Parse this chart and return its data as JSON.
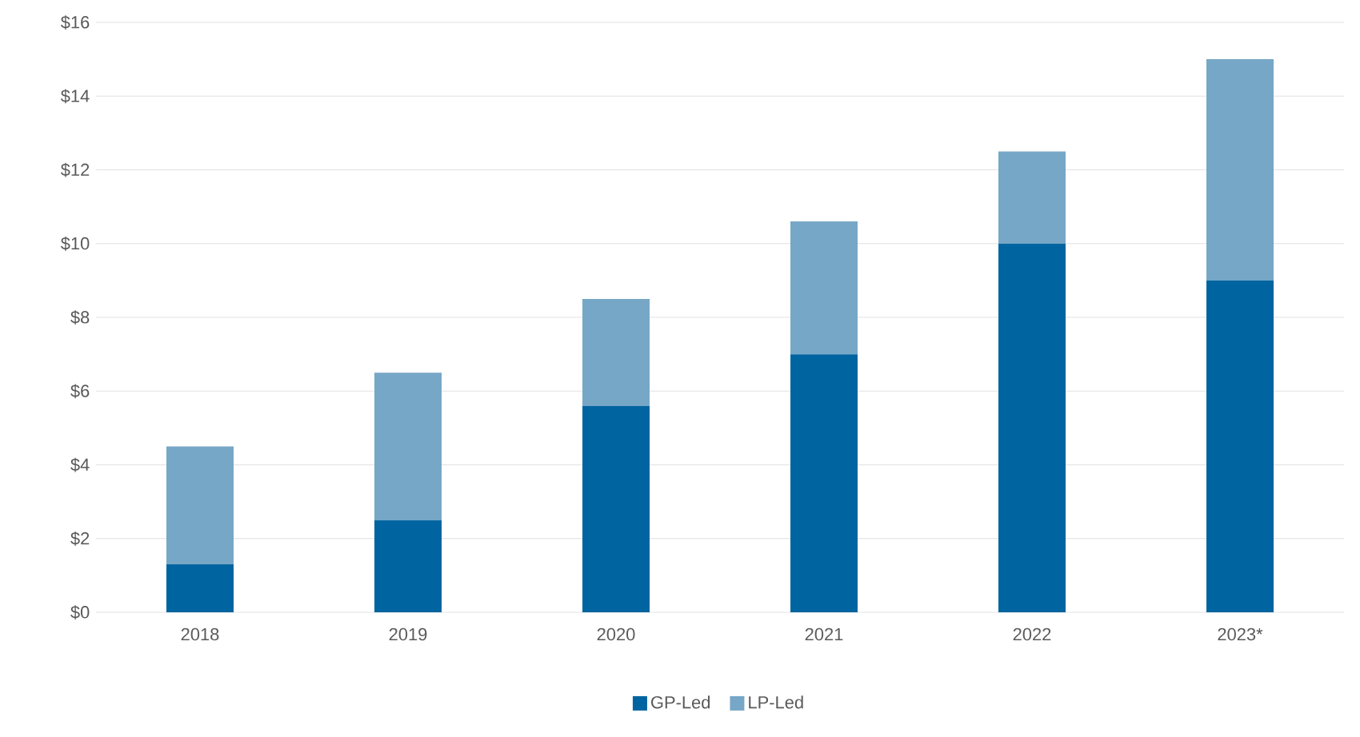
{
  "chart_data": {
    "type": "bar",
    "stacked": true,
    "categories": [
      "2018",
      "2019",
      "2020",
      "2021",
      "2022",
      "2023*"
    ],
    "series": [
      {
        "name": "GP-Led",
        "color": "#0064a0",
        "values": [
          1.3,
          2.5,
          5.6,
          7.0,
          10.0,
          9.0
        ]
      },
      {
        "name": "LP-Led",
        "color": "#76a7c6",
        "values": [
          3.2,
          4.0,
          2.9,
          3.6,
          2.5,
          6.0
        ]
      }
    ],
    "ylim": [
      0,
      16
    ],
    "yticks": [
      {
        "value": 0,
        "label": "$0"
      },
      {
        "value": 2,
        "label": "$2"
      },
      {
        "value": 4,
        "label": "$4"
      },
      {
        "value": 6,
        "label": "$6"
      },
      {
        "value": 8,
        "label": "$8"
      },
      {
        "value": 10,
        "label": "$10"
      },
      {
        "value": 12,
        "label": "$12"
      },
      {
        "value": 14,
        "label": "$14"
      },
      {
        "value": 16,
        "label": "$16"
      }
    ],
    "grid": "y",
    "legend": "bottom"
  }
}
